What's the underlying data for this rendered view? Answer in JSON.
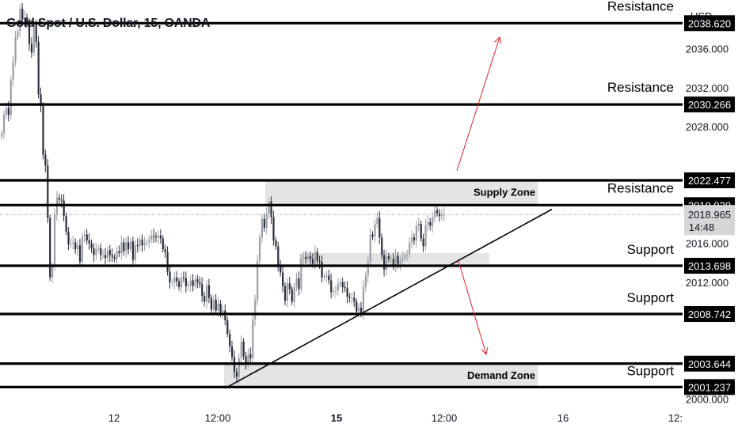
{
  "header": {
    "title": "Gold Spot / U.S. Dollar, 15, OANDA",
    "currency": "USD"
  },
  "colors": {
    "up": "#9aa0a6",
    "down": "#2a2e39",
    "level_line": "#000000",
    "zone_fill": "#e4e4e4",
    "arrow": "#e0202a",
    "label_bg": "#000000",
    "label_fg": "#ffffff",
    "current_label_bg": "#d6d6d6"
  },
  "chart_data": {
    "type": "candlestick",
    "symbol": "XAUUSD",
    "timeframe": "15",
    "ylim": [
      1999.4,
      2041.0
    ],
    "y_ticks": [
      2000,
      2012,
      2016,
      2028,
      2032,
      2036
    ],
    "x_ticks": [
      {
        "label": "12",
        "bold": false
      },
      {
        "label": "12:00",
        "bold": false
      },
      {
        "label": "15",
        "bold": true
      },
      {
        "label": "12:00",
        "bold": false
      },
      {
        "label": "16",
        "bold": false
      },
      {
        "label": "12:",
        "bold": false
      }
    ],
    "current_price": {
      "value": 2018.965,
      "label": "2018.965",
      "countdown": "14:48"
    },
    "levels": [
      {
        "value": 2038.62,
        "label": "2038.620",
        "role": "Resistance"
      },
      {
        "value": 2030.266,
        "label": "2030.266",
        "role": "Resistance"
      },
      {
        "value": 2022.477,
        "label": "2022.477",
        "role": ""
      },
      {
        "value": 2019.929,
        "label": "2019.929",
        "role": "Resistance"
      },
      {
        "value": 2013.698,
        "label": "2013.698",
        "role": "Support"
      },
      {
        "value": 2008.742,
        "label": "2008.742",
        "role": "Support"
      },
      {
        "value": 2003.644,
        "label": "2003.644",
        "role": ""
      },
      {
        "value": 2001.237,
        "label": "2001.237",
        "role": "Support"
      }
    ],
    "zones": [
      {
        "name": "Supply Zone",
        "top": 2022.4,
        "bottom": 2020.0
      },
      {
        "name": "Demand Zone",
        "top": 2003.6,
        "bottom": 2001.3
      },
      {
        "name": "",
        "top": 2015.0,
        "bottom": 2013.9
      }
    ],
    "closes": [
      2027.3,
      2029.2,
      2029.9,
      2029.2,
      2032.8,
      2034.7,
      2037.2,
      2037.8,
      2040.1,
      2039.0,
      2039.2,
      2038.6,
      2036.5,
      2035.6,
      2038.5,
      2036.7,
      2031.3,
      2030.1,
      2025.1,
      2024.0,
      2018.6,
      2012.5,
      2013.6,
      2019.0,
      2020.7,
      2020.5,
      2020.4,
      2018.8,
      2017.2,
      2015.9,
      2016.0,
      2016.1,
      2015.4,
      2015.8,
      2014.1,
      2016.7,
      2016.9,
      2016.3,
      2016.0,
      2015.5,
      2014.8,
      2015.4,
      2015.5,
      2014.8,
      2014.8,
      2014.5,
      2015.3,
      2014.8,
      2014.6,
      2014.4,
      2015.2,
      2015.0,
      2016.1,
      2015.2,
      2016.1,
      2015.4,
      2016.2,
      2014.3,
      2015.8,
      2015.7,
      2016.4,
      2015.8,
      2016.0,
      2016.1,
      2016.4,
      2016.8,
      2016.7,
      2016.6,
      2016.8,
      2016.5,
      2015.4,
      2015.1,
      2013.1,
      2012.0,
      2012.0,
      2012.5,
      2012.1,
      2011.5,
      2012.5,
      2012.4,
      2011.6,
      2011.7,
      2012.2,
      2011.6,
      2012.3,
      2012.0,
      2011.8,
      2010.6,
      2010.0,
      2011.7,
      2010.4,
      2009.2,
      2010.2,
      2009.1,
      2009.8,
      2008.9,
      2009.1,
      2008.1,
      2006.7,
      2005.4,
      2004.3,
      2002.8,
      2002.3,
      2004.2,
      2005.9,
      2004.4,
      2003.6,
      2004.6,
      2004.2,
      2008.2,
      2010.2,
      2014.2,
      2016.6,
      2018.5,
      2017.6,
      2019.0,
      2020.3,
      2018.7,
      2016.3,
      2015.7,
      2013.7,
      2013.0,
      2011.6,
      2010.1,
      2011.9,
      2011.3,
      2010.0,
      2011.5,
      2012.4,
      2011.3,
      2014.5,
      2014.6,
      2014.4,
      2014.7,
      2014.4,
      2013.9,
      2015.1,
      2014.2,
      2014.1,
      2012.5,
      2012.6,
      2012.7,
      2012.2,
      2011.0,
      2011.1,
      2011.2,
      2011.8,
      2012.0,
      2011.5,
      2011.4,
      2010.5,
      2010.4,
      2010.4,
      2010.0,
      2009.0,
      2009.4,
      2008.8,
      2011.5,
      2012.7,
      2014.1,
      2016.9,
      2016.7,
      2018.0,
      2018.6,
      2016.6,
      2014.8,
      2013.3,
      2014.7,
      2014.4,
      2014.4,
      2013.7,
      2014.7,
      2013.9,
      2014.2,
      2014.5,
      2014.8,
      2014.9,
      2016.1,
      2016.6,
      2016.3,
      2017.8,
      2018.0,
      2016.5,
      2015.7,
      2017.9,
      2018.2,
      2017.8,
      2018.7,
      2019.4,
      2019.1,
      2018.8,
      2018.9,
      2019.0
    ]
  },
  "annotations": {
    "supply_zone": "Supply Zone",
    "demand_zone": "Demand Zone",
    "resistance": "Resistance",
    "support": "Support"
  }
}
